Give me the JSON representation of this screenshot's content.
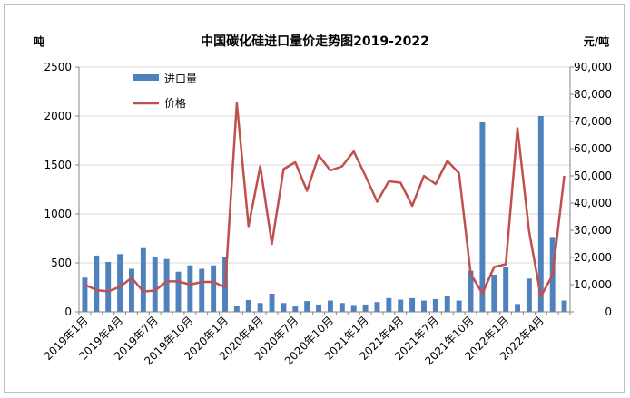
{
  "chart_data": {
    "type": "bar+line",
    "title": "中国碳化硅进口量价走势图2019-2022",
    "ylabel_left": "吨",
    "ylabel_right": "元/吨",
    "y_left_ticks": [
      "0",
      "500",
      "1000",
      "1500",
      "2000",
      "2500"
    ],
    "y_right_ticks": [
      "0",
      "10,000",
      "20,000",
      "30,000",
      "40,000",
      "50,000",
      "60,000",
      "70,000",
      "80,000",
      "90,000"
    ],
    "ylim_left": [
      0,
      2500
    ],
    "ylim_right": [
      0,
      90000
    ],
    "x_tick_labels": [
      "2019年1月",
      "2019年4月",
      "2019年7月",
      "2019年10月",
      "2020年1月",
      "2020年4月",
      "2020年7月",
      "2020年10月",
      "2021年1月",
      "2021年4月",
      "2021年7月",
      "2021年10月",
      "2022年1月",
      "2022年4月"
    ],
    "categories": [
      "2019年1月",
      "2019年2月",
      "2019年3月",
      "2019年4月",
      "2019年5月",
      "2019年6月",
      "2019年7月",
      "2019年8月",
      "2019年9月",
      "2019年10月",
      "2019年11月",
      "2019年12月",
      "2020年1月",
      "2020年2月",
      "2020年3月",
      "2020年4月",
      "2020年5月",
      "2020年6月",
      "2020年7月",
      "2020年8月",
      "2020年9月",
      "2020年10月",
      "2020年11月",
      "2020年12月",
      "2021年1月",
      "2021年2月",
      "2021年3月",
      "2021年4月",
      "2021年5月",
      "2021年6月",
      "2021年7月",
      "2021年8月",
      "2021年9月",
      "2021年10月",
      "2021年11月",
      "2021年12月",
      "2022年1月",
      "2022年2月",
      "2022年3月",
      "2022年4月",
      "2022年5月",
      "2022年6月"
    ],
    "series": [
      {
        "name": "进口量",
        "kind": "bar",
        "axis": "left",
        "color": "#4f81bd",
        "values": [
          350,
          575,
          510,
          590,
          440,
          660,
          555,
          540,
          410,
          475,
          440,
          475,
          565,
          60,
          120,
          90,
          185,
          90,
          55,
          110,
          75,
          115,
          90,
          70,
          75,
          100,
          140,
          125,
          140,
          115,
          130,
          160,
          115,
          420,
          1935,
          380,
          455,
          80,
          340,
          2000,
          765,
          115
        ]
      },
      {
        "name": "价格",
        "kind": "line",
        "axis": "right",
        "color": "#c0504d",
        "values": [
          10000,
          8000,
          7500,
          9200,
          12500,
          7500,
          7800,
          11200,
          11200,
          10000,
          11000,
          11000,
          9000,
          76700,
          31500,
          53500,
          25000,
          52500,
          55000,
          44500,
          57500,
          52000,
          53500,
          59000,
          50000,
          40500,
          48000,
          47500,
          39000,
          50000,
          47000,
          55500,
          51000,
          14000,
          6700,
          16500,
          17500,
          67500,
          29500,
          5700,
          13500,
          50000
        ]
      }
    ],
    "legend_position": "top-left inside plot",
    "grid": "horizontal"
  }
}
